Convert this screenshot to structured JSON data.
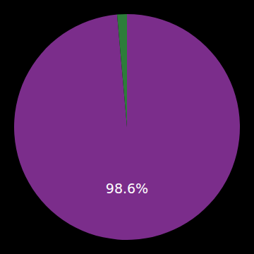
{
  "chart_data": {
    "type": "pie",
    "values": [
      98.6,
      1.4
    ],
    "colors": [
      "#7B2D8B",
      "#2D7D3A"
    ],
    "annotations": [
      "98.6%"
    ]
  }
}
